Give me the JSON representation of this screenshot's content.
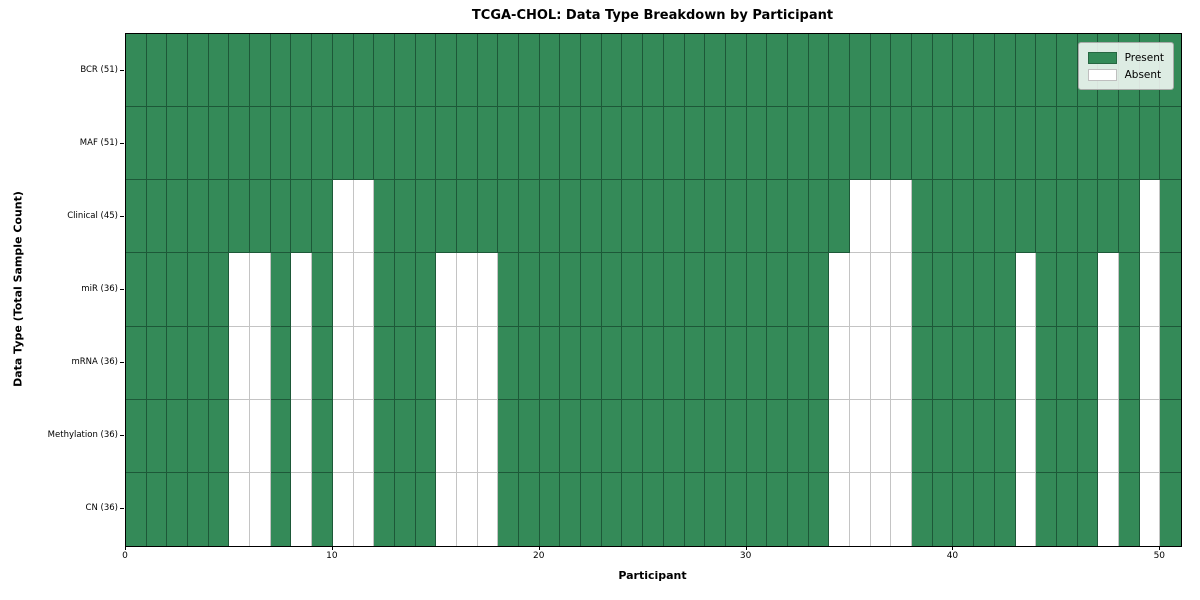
{
  "chart_data": {
    "type": "heatmap",
    "title": "TCGA-CHOL: Data Type Breakdown by Participant",
    "xlabel": "Participant",
    "ylabel": "Data Type (Total Sample Count)",
    "n_participants": 51,
    "x_ticks": [
      0,
      10,
      20,
      30,
      40,
      50
    ],
    "xlim": [
      0,
      51
    ],
    "grid": true,
    "colors": {
      "present": "#348a58",
      "absent": "#ffffff",
      "grid_on_present": "#1d5838",
      "grid_on_absent": "#c4c4c4",
      "spine": "#000000"
    },
    "legend": {
      "position": "upper right",
      "entries": [
        {
          "label": "Present",
          "color": "#348a58"
        },
        {
          "label": "Absent",
          "color": "#ffffff"
        }
      ]
    },
    "rows": [
      {
        "label": "BCR (51)",
        "present_count": 51,
        "absent_participants": []
      },
      {
        "label": "MAF (51)",
        "present_count": 51,
        "absent_participants": []
      },
      {
        "label": "Clinical (45)",
        "present_count": 45,
        "absent_participants": [
          10,
          11,
          35,
          36,
          37,
          49
        ]
      },
      {
        "label": "miR (36)",
        "present_count": 36,
        "absent_participants": [
          5,
          6,
          8,
          10,
          11,
          15,
          16,
          17,
          34,
          35,
          36,
          37,
          43,
          47,
          49
        ]
      },
      {
        "label": "mRNA (36)",
        "present_count": 36,
        "absent_participants": [
          5,
          6,
          8,
          10,
          11,
          15,
          16,
          17,
          34,
          35,
          36,
          37,
          43,
          47,
          49
        ]
      },
      {
        "label": "Methylation (36)",
        "present_count": 36,
        "absent_participants": [
          5,
          6,
          8,
          10,
          11,
          15,
          16,
          17,
          34,
          35,
          36,
          37,
          43,
          47,
          49
        ]
      },
      {
        "label": "CN (36)",
        "present_count": 36,
        "absent_participants": [
          5,
          6,
          8,
          10,
          11,
          15,
          16,
          17,
          34,
          35,
          36,
          37,
          43,
          47,
          49
        ]
      }
    ]
  }
}
